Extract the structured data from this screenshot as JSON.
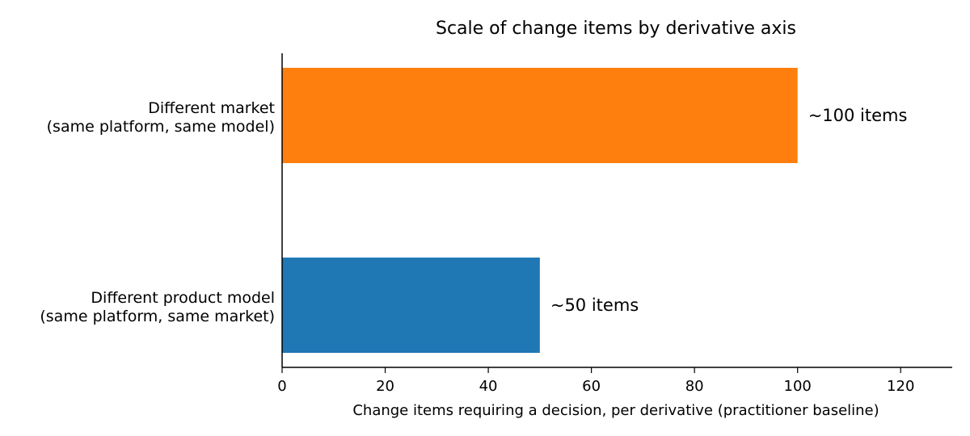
{
  "chart_data": {
    "type": "bar",
    "orientation": "horizontal",
    "title": "Scale of change items by derivative axis",
    "xlabel": "Change items requiring a decision, per derivative (practitioner baseline)",
    "ylabel": "",
    "xlim": [
      0,
      130
    ],
    "xticks": [
      0,
      20,
      40,
      60,
      80,
      100,
      120
    ],
    "grid": false,
    "categories": [
      [
        "Different product model",
        "(same platform, same market)"
      ],
      [
        "Different market",
        "(same platform, same model)"
      ]
    ],
    "values": [
      50,
      100
    ],
    "data_labels": [
      "~50 items",
      "~100 items"
    ],
    "colors": [
      "#1f77b4",
      "#ff7f0e"
    ]
  }
}
